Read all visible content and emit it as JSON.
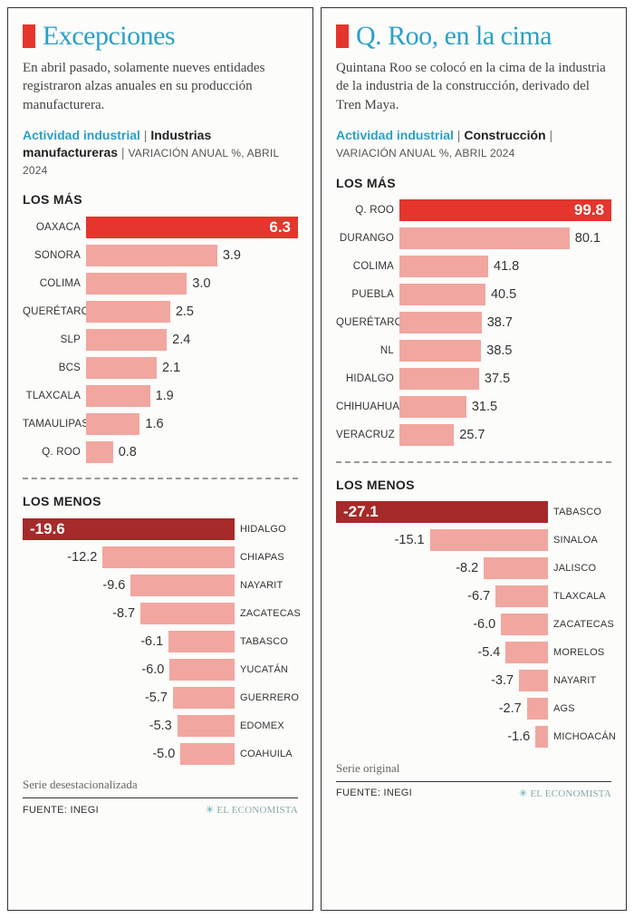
{
  "colors": {
    "accent_red": "#e5352d",
    "dark_red": "#a62a2a",
    "bar_pink": "#f2a6a0",
    "title_blue": "#2aa0c8",
    "text": "#333333"
  },
  "panels": [
    {
      "title": "Excepciones",
      "intro": "En abril pasado, solamente nueves entidades registraron alzas anuales en su producción manufacturera.",
      "subhead_blue": "Actividad industrial",
      "subhead_bold": "Industrias manufactureras",
      "subhead_caps": "VARIACIÓN ANUAL %, ABRIL 2024",
      "top_label": "LOS MÁS",
      "top_max": 6.3,
      "top": [
        {
          "label": "OAXACA",
          "value": 6.3,
          "highlight": true
        },
        {
          "label": "SONORA",
          "value": 3.9
        },
        {
          "label": "COLIMA",
          "value": 3.0
        },
        {
          "label": "QUERÉTARO",
          "value": 2.5
        },
        {
          "label": "SLP",
          "value": 2.4
        },
        {
          "label": "BCS",
          "value": 2.1
        },
        {
          "label": "TLAXCALA",
          "value": 1.9
        },
        {
          "label": "TAMAULIPAS",
          "value": 1.6
        },
        {
          "label": "Q. ROO",
          "value": 0.8
        }
      ],
      "bottom_label": "LOS MENOS",
      "bottom_max": 19.6,
      "bottom": [
        {
          "label": "HIDALGO",
          "value": -19.6,
          "highlight": true
        },
        {
          "label": "CHIAPAS",
          "value": -12.2
        },
        {
          "label": "NAYARIT",
          "value": -9.6
        },
        {
          "label": "ZACATECAS",
          "value": -8.7
        },
        {
          "label": "TABASCO",
          "value": -6.1
        },
        {
          "label": "YUCATÁN",
          "value": -6.0
        },
        {
          "label": "GUERRERO",
          "value": -5.7
        },
        {
          "label": "EDOMEX",
          "value": -5.3
        },
        {
          "label": "COAHUILA",
          "value": -5.0
        }
      ],
      "footnote": "Serie desestacionalizada",
      "source": "FUENTE: INEGI",
      "publisher": "EL ECONOMISTA"
    },
    {
      "title": "Q. Roo, en la cima",
      "intro": "Quintana Roo se colocó en la cima de la industria de la industria de la construcción, derivado del Tren Maya.",
      "subhead_blue": "Actividad industrial",
      "subhead_bold": "Construcción",
      "subhead_caps": "VARIACIÓN ANUAL %, ABRIL 2024",
      "top_label": "LOS MÁS",
      "top_max": 99.8,
      "top": [
        {
          "label": "Q. ROO",
          "value": 99.8,
          "highlight": true
        },
        {
          "label": "DURANGO",
          "value": 80.1
        },
        {
          "label": "COLIMA",
          "value": 41.8
        },
        {
          "label": "PUEBLA",
          "value": 40.5
        },
        {
          "label": "QUERÉTARO",
          "value": 38.7
        },
        {
          "label": "NL",
          "value": 38.5
        },
        {
          "label": "HIDALGO",
          "value": 37.5
        },
        {
          "label": "CHIHUAHUA",
          "value": 31.5
        },
        {
          "label": "VERACRUZ",
          "value": 25.7
        }
      ],
      "bottom_label": "LOS MENOS",
      "bottom_max": 27.1,
      "bottom": [
        {
          "label": "TABASCO",
          "value": -27.1,
          "highlight": true
        },
        {
          "label": "SINALOA",
          "value": -15.1
        },
        {
          "label": "JALISCO",
          "value": -8.2
        },
        {
          "label": "TLAXCALA",
          "value": -6.7
        },
        {
          "label": "ZACATECAS",
          "value": -6.0
        },
        {
          "label": "MORELOS",
          "value": -5.4
        },
        {
          "label": "NAYARIT",
          "value": -3.7
        },
        {
          "label": "AGS",
          "value": -2.7
        },
        {
          "label": "MICHOACÁN",
          "value": -1.6
        }
      ],
      "footnote": "Serie original",
      "source": "FUENTE: INEGI",
      "publisher": "EL ECONOMISTA"
    }
  ]
}
